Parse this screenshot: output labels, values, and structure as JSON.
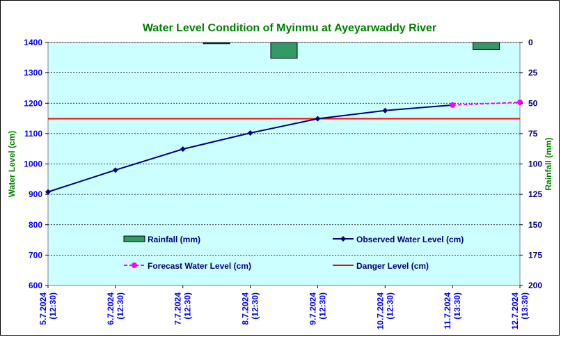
{
  "chart_data": {
    "type": "line",
    "title": "Water Level Condition of Myinmu at Ayeyarwaddy River",
    "ylabel": "Water Level (cm)",
    "y2label": "Rainfall (mm)",
    "ylim": [
      600,
      1400
    ],
    "yticks": [
      "600",
      "700",
      "800",
      "900",
      "1000",
      "1100",
      "1200",
      "1300",
      "1400"
    ],
    "y2lim": [
      0,
      200
    ],
    "y2ticks": [
      "0",
      "25",
      "50",
      "75",
      "100",
      "125",
      "150",
      "175",
      "200"
    ],
    "categories": [
      {
        "date": "5.7.2024",
        "time": "(12:30)"
      },
      {
        "date": "6.7.2024",
        "time": "(12:30)"
      },
      {
        "date": "7.7.2024",
        "time": "(12:30)"
      },
      {
        "date": "8.7.2024",
        "time": "(12:30)"
      },
      {
        "date": "9.7.2024",
        "time": "(12:30)"
      },
      {
        "date": "10.7.2024",
        "time": "(12:30)"
      },
      {
        "date": "11.7.2024",
        "time": "(13:30)"
      },
      {
        "date": "12.7.2024",
        "time": "(13:30)"
      }
    ],
    "grid": true,
    "series": [
      {
        "name": "Rainfall (mm)",
        "kind": "bar",
        "axis": "right",
        "color": "#339966",
        "values": [
          0,
          0,
          1,
          13,
          0,
          0,
          6,
          0
        ]
      },
      {
        "name": "Observed Water Level (cm)",
        "kind": "line",
        "axis": "left",
        "color": "#000080",
        "marker": "diamond",
        "values": [
          908,
          980,
          1049,
          1102,
          1149,
          1176,
          1194,
          null
        ]
      },
      {
        "name": "Forecast Water Level (cm)",
        "kind": "line",
        "axis": "left",
        "color": "#ff00ff",
        "marker": "circle",
        "dashed": true,
        "values": [
          null,
          null,
          null,
          null,
          null,
          null,
          1194,
          1203
        ]
      },
      {
        "name": "Danger Level (cm)",
        "kind": "hline",
        "axis": "left",
        "color": "#ff0000",
        "value": 1149
      }
    ],
    "legend": [
      "Rainfall (mm)",
      "Observed Water Level (cm)",
      "Forecast Water Level (cm)",
      "Danger Level (cm)"
    ],
    "colors": {
      "plot_bg": "#ccffff",
      "title": "#008000",
      "left_axis": "#0000ff",
      "right_axis": "#000080",
      "left_label": "#008000",
      "right_label": "#008000",
      "ticks_x": "#0000ff"
    }
  }
}
